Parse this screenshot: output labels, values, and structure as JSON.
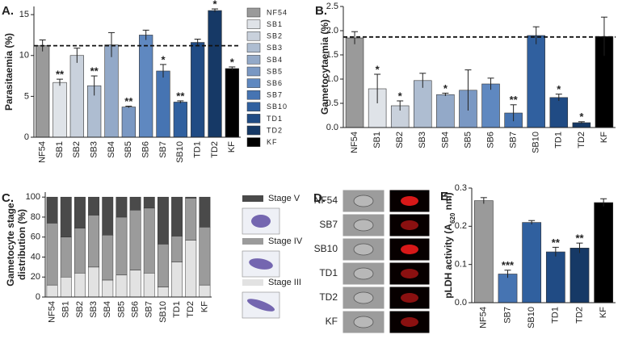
{
  "chart_data": [
    {
      "type": "bar",
      "label": "A.",
      "ylabel": "Parasitaemia (%)",
      "categories": [
        "NF54",
        "SB1",
        "SB2",
        "SB3",
        "SB4",
        "SB5",
        "SB6",
        "SB7",
        "SB10",
        "TD1",
        "TD2",
        "KF"
      ],
      "values": [
        11.2,
        6.7,
        10,
        6.3,
        11.3,
        3.7,
        12.5,
        8.1,
        4.3,
        11.6,
        15.5,
        8.4
      ],
      "errors": [
        0.7,
        0.4,
        0.9,
        1.2,
        1.5,
        0.1,
        0.6,
        0.8,
        0.15,
        0.4,
        0.2,
        0.2
      ],
      "stars": [
        null,
        "**",
        null,
        "**",
        null,
        "**",
        null,
        "*",
        "**",
        null,
        "*",
        "*"
      ],
      "colors": [
        "#9a9a9a",
        "#dfe3e8",
        "#c9d1dc",
        "#aebdd1",
        "#93a9c8",
        "#7a98c3",
        "#5f88c0",
        "#4674b2",
        "#30609f",
        "#204b84",
        "#163966",
        "#000000"
      ],
      "reference": 11.2,
      "legend": true,
      "ylim": [
        0,
        16
      ],
      "yticks": [
        0,
        5,
        10,
        15
      ]
    },
    {
      "type": "bar",
      "label": "B.",
      "ylabel": "Gametocytaemia (%)",
      "categories": [
        "NF54",
        "SB1",
        "SB2",
        "SB3",
        "SB4",
        "SB5",
        "SB6",
        "SB7",
        "SB10",
        "TD1",
        "TD2",
        "KF"
      ],
      "values": [
        1.85,
        0.8,
        0.45,
        0.97,
        0.68,
        0.77,
        0.9,
        0.3,
        1.9,
        0.62,
        0.1,
        1.88
      ],
      "errors": [
        0.13,
        0.3,
        0.1,
        0.15,
        0.03,
        0.42,
        0.12,
        0.17,
        0.18,
        0.07,
        0.02,
        0.4
      ],
      "stars": [
        null,
        "*",
        "*",
        null,
        "*",
        null,
        null,
        "**",
        null,
        "*",
        "*",
        null
      ],
      "colors": [
        "#9a9a9a",
        "#dfe3e8",
        "#c9d1dc",
        "#aebdd1",
        "#93a9c8",
        "#7a98c3",
        "#5f88c0",
        "#4674b2",
        "#30609f",
        "#204b84",
        "#163966",
        "#000000"
      ],
      "reference": 1.87,
      "ylim": [
        0,
        2.5
      ],
      "yticks": [
        {
          "value": 0,
          "label": "0.0"
        },
        0.5,
        {
          "value": 1,
          "label": "1.0"
        },
        1.5,
        {
          "value": 2,
          "label": "2.0"
        },
        2.5
      ]
    },
    {
      "type": "stacked_bar",
      "label": "C.",
      "ylabel": [
        "Gametocyte stage",
        "distribution (%)"
      ],
      "categories": [
        "NF54",
        "SB1",
        "SB2",
        "SB3",
        "SB4",
        "SB5",
        "SB6",
        "SB7",
        "SB10",
        "TD1",
        "TD2",
        "KF"
      ],
      "series": [
        {
          "name": "Stage III",
          "color": "#e2e2e2",
          "values": [
            12,
            20,
            24,
            30,
            17,
            22,
            27,
            24,
            10,
            35,
            57,
            12
          ]
        },
        {
          "name": "Stage IV",
          "color": "#9b9b9b",
          "values": [
            62,
            40,
            45,
            52,
            45,
            58,
            60,
            65,
            43,
            26,
            42,
            58
          ]
        },
        {
          "name": "Stage V",
          "color": "#4a4a4a",
          "values": [
            26,
            40,
            31,
            18,
            38,
            20,
            13,
            11,
            47,
            39,
            1,
            30
          ]
        }
      ],
      "ylim": [
        0,
        105
      ],
      "yticks": [
        0,
        20,
        40,
        60,
        80,
        100
      ]
    },
    {
      "type": "bar",
      "label": "E.",
      "ylabel": {
        "text": "pLDH activity (A",
        "sub": "620",
        "rest": " nm)"
      },
      "categories": [
        "NF54",
        "SB7",
        "SB10",
        "TD1",
        "TD2",
        "KF"
      ],
      "values": [
        0.267,
        0.075,
        0.21,
        0.133,
        0.143,
        0.262
      ],
      "errors": [
        0.008,
        0.01,
        0.005,
        0.012,
        0.013,
        0.01
      ],
      "stars": [
        null,
        "***",
        null,
        "**",
        "**",
        null
      ],
      "colors": [
        "#9a9a9a",
        "#4674b2",
        "#30609f",
        "#204b84",
        "#163966",
        "#000000"
      ],
      "ylim": [
        0,
        0.3
      ],
      "yticks": [
        {
          "value": 0,
          "label": "0.0"
        },
        0.1,
        0.2,
        0.3
      ]
    }
  ],
  "panel_d": {
    "label": "D.",
    "rows": [
      "NF54",
      "SB7",
      "SB10",
      "TD1",
      "TD2",
      "KF"
    ]
  }
}
